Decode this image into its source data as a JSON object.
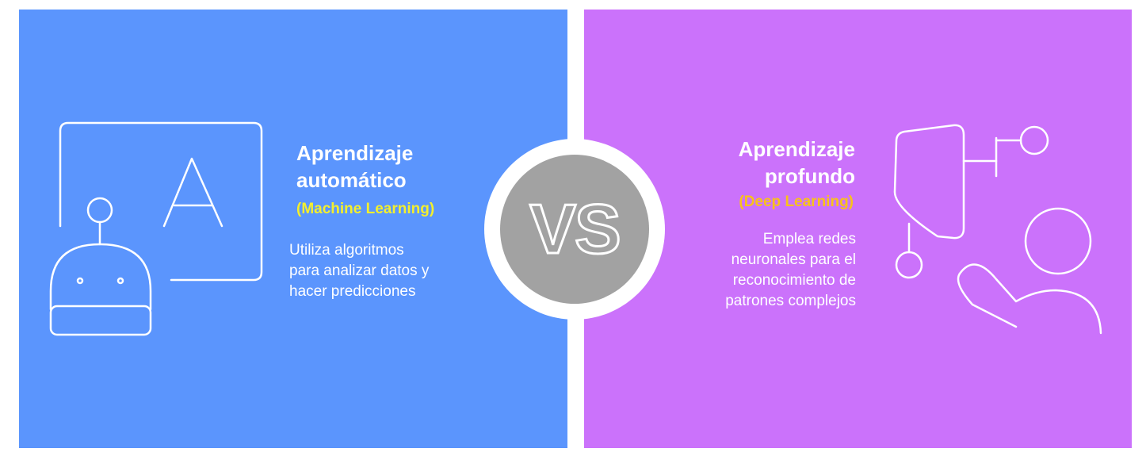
{
  "left": {
    "title_lines": [
      "Aprendizaje",
      "automático"
    ],
    "subtitle": "(Machine Learning)",
    "description_lines": [
      "Utiliza algoritmos",
      "para analizar datos y",
      "hacer predicciones"
    ]
  },
  "right": {
    "title_lines": [
      "Aprendizaje",
      "profundo"
    ],
    "subtitle": "(Deep Learning)",
    "description_lines": [
      "Emplea redes",
      "neuronales para el",
      "reconocimiento de",
      "patrones complejos"
    ]
  },
  "vs_label": "VS",
  "colors": {
    "left_bg": "#5b95fd",
    "right_bg": "#cb72fb",
    "left_subtitle": "#f3ef2c",
    "right_subtitle": "#f8c21a",
    "vs_circle": "#a2a2a2",
    "line_art": "#ffffff"
  },
  "icons": {
    "left": [
      "robot-icon",
      "whiteboard-icon"
    ],
    "right": [
      "neural-head-icon",
      "person-icon"
    ]
  }
}
